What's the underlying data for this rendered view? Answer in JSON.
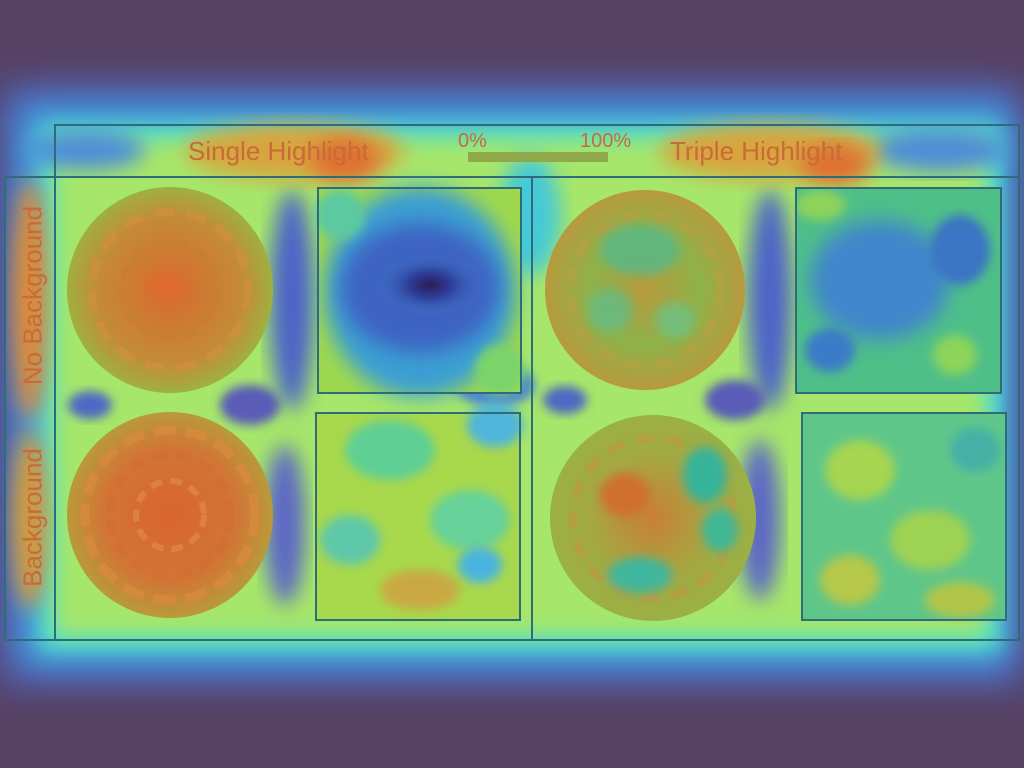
{
  "header": {
    "left_title": "Single Highlight",
    "right_title": "Triple Highlight",
    "scale_min": "0%",
    "scale_max": "100%"
  },
  "rows": {
    "top": "No Background",
    "bottom": "Background"
  },
  "colors": {
    "background": "#574263",
    "label": "#c96a3a",
    "frame": "#2f6b7a"
  },
  "conditions": [
    {
      "id": "single-nobg",
      "circle_level": "high",
      "square_level": "low"
    },
    {
      "id": "triple-nobg",
      "circle_level": "medium",
      "square_level": "low"
    },
    {
      "id": "single-bg",
      "circle_level": "very-high",
      "square_level": "medium"
    },
    {
      "id": "triple-bg",
      "circle_level": "medium",
      "square_level": "medium"
    }
  ]
}
